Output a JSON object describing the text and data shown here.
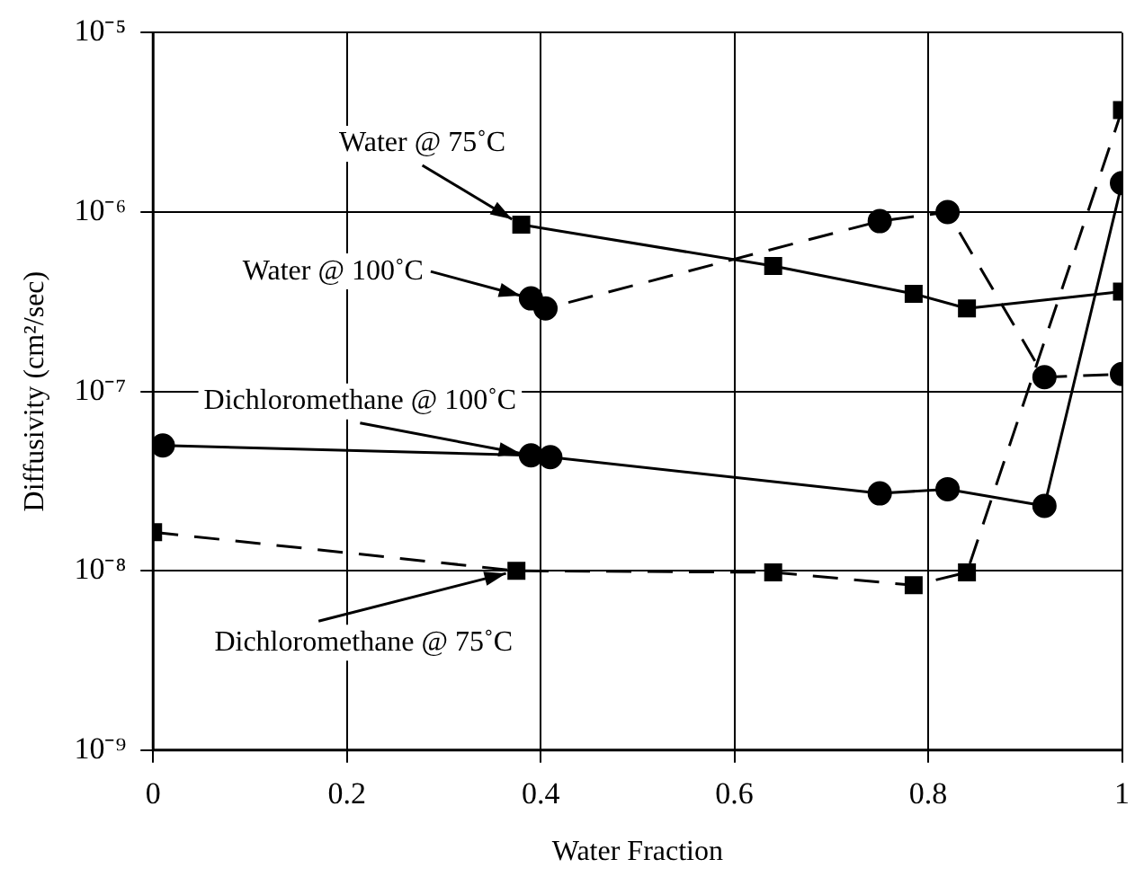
{
  "chart_data": {
    "type": "line",
    "xlabel": "Water Fraction",
    "ylabel": "Diffusivity (cm²/sec)",
    "log": "y",
    "grid": true,
    "legend": false,
    "xlim": [
      0,
      1
    ],
    "xticks": [
      0,
      0.2,
      0.4,
      0.6,
      0.8,
      {
        "value": 1,
        "label": "1"
      }
    ],
    "ylim": [
      1e-09,
      1e-05
    ],
    "yticks": [
      {
        "value": 1e-09,
        "label": "10⁻⁹"
      },
      {
        "value": 1e-08,
        "label": "10⁻⁸"
      },
      {
        "value": 1e-07,
        "label": "10⁻⁷"
      },
      {
        "value": 1e-06,
        "label": "10⁻⁶"
      },
      {
        "value": 1e-05,
        "label": "10⁻⁵"
      }
    ],
    "series": [
      {
        "color": "#000000",
        "marker": "square",
        "line_style": "solid",
        "x": [
          0.38,
          0.64,
          0.785,
          0.84,
          1.0
        ],
        "values": [
          8.5e-07,
          5e-07,
          3.5e-07,
          2.9e-07,
          3.6e-07
        ]
      },
      {
        "color": "#000000",
        "marker": "circle",
        "line_style": "dashed",
        "x": [
          0.39,
          0.405,
          0.75,
          0.82,
          0.92,
          1.0
        ],
        "values": [
          3.3e-07,
          2.9e-07,
          8.9e-07,
          1e-06,
          1.2e-07,
          1.25e-07
        ]
      },
      {
        "color": "#000000",
        "marker": "circle",
        "line_style": "solid",
        "x": [
          0.01,
          0.39,
          0.41,
          0.75,
          0.82,
          0.92,
          1.0
        ],
        "values": [
          5e-08,
          4.4e-08,
          4.3e-08,
          2.7e-08,
          2.85e-08,
          2.3e-08,
          1.45e-06
        ]
      },
      {
        "color": "#000000",
        "marker": "square",
        "line_style": "dashed",
        "x": [
          0.0,
          0.375,
          0.64,
          0.785,
          0.84,
          1.0
        ],
        "values": [
          1.64e-08,
          1e-08,
          9.8e-09,
          8.3e-09,
          9.8e-09,
          3.7e-06
        ]
      }
    ],
    "annotations": [
      {
        "text": "Water @ 75˚C",
        "x": 0.38,
        "y": 8.5e-07
      },
      {
        "text": "Water @ 100˚C",
        "x": 0.39,
        "y": 3.3e-07
      },
      {
        "text": "Dichloromethane @ 100˚C",
        "x": 0.39,
        "y": 4.4e-08
      },
      {
        "text": "Dichloromethane @ 75˚C",
        "x": 0.375,
        "y": 1e-08
      }
    ]
  }
}
